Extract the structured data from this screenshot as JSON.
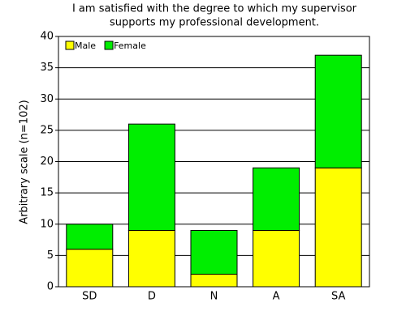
{
  "chart_data": {
    "type": "stacked_bar",
    "title": [
      "I am satisfied with the degree to which my supervisor",
      "supports my professional development."
    ],
    "y_label": "Arbitrary scale (n=102)",
    "categories": [
      "SD",
      "D",
      "N",
      "A",
      "SA"
    ],
    "series": [
      {
        "name": "Male",
        "color": "#ffff00",
        "values": [
          6,
          9,
          2,
          9,
          19
        ]
      },
      {
        "name": "Female",
        "color": "#00ee00",
        "values": [
          4,
          17,
          7,
          10,
          18
        ]
      }
    ],
    "ylim": [
      0,
      40
    ],
    "yticks": [
      0,
      5,
      10,
      15,
      20,
      25,
      30,
      35,
      40
    ],
    "grid": true,
    "legend": "top-left"
  }
}
